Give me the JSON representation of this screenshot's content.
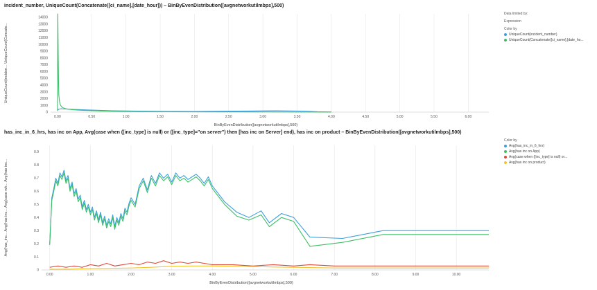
{
  "chart_data": [
    {
      "type": "line",
      "title": "incident_number,  UniqueCount(Concatenate([ci_name],[date_hour]))  –  BinByEvenDistribution([avgnetworkutilmbps],500)",
      "xlabel": "BinByEvenDistribution([avgnetworkutilmbps],500)",
      "ylabel": "UniqueCount(inciden...  UniqueCount(Concate...",
      "x_ticks": [
        "0.00",
        "0.50",
        "1.00",
        "1.50",
        "2.00",
        "2.50",
        "3.00",
        "3.50",
        "4.00",
        "4.50",
        "5.00",
        "5.50",
        "6.00"
      ],
      "y_ticks": [
        "0",
        "1000",
        "2000",
        "3000",
        "4000",
        "5000",
        "6000",
        "7000",
        "8000",
        "9000",
        "10000",
        "11000",
        "12000",
        "13000",
        "14000"
      ],
      "xlim": [
        -0.1,
        6.3
      ],
      "ylim": [
        0,
        14500
      ],
      "legend": {
        "header": [
          "Data limited by:",
          "Expression",
          "Color by"
        ],
        "position": "right"
      },
      "series": [
        {
          "name": "UniqueCount(incident_number)",
          "color": "#3aa0dc",
          "x": [
            0.0,
            0.02,
            0.05,
            0.1,
            0.2,
            0.3,
            0.5,
            0.8,
            1.2,
            1.6,
            2.0,
            2.4,
            2.8,
            3.2,
            3.6,
            3.8,
            4.0
          ],
          "y": [
            300,
            420,
            500,
            460,
            420,
            380,
            300,
            200,
            140,
            110,
            100,
            130,
            160,
            190,
            150,
            60,
            20
          ]
        },
        {
          "name": "UniqueCount(Concatenate([ci_name],[date_ho...",
          "color": "#3cbf68",
          "x": [
            0.0,
            0.005,
            0.01,
            0.015,
            0.02,
            0.03,
            0.04,
            0.06,
            0.08,
            0.12,
            0.2,
            0.3,
            0.5,
            0.8,
            1.2,
            2.0,
            3.0,
            4.0
          ],
          "y": [
            200,
            14500,
            9000,
            5000,
            2600,
            1600,
            1100,
            800,
            650,
            500,
            380,
            300,
            200,
            120,
            80,
            40,
            30,
            10
          ]
        }
      ]
    },
    {
      "type": "line",
      "title": "has_inc_in_6_hrs, has inc on App, Avg(case  when ([inc_type] is null) or ([inc_type]=\"on server\") then [has inc on Server] end), has inc on product  –  BinByEvenDistribution([avgnetworkutilmbps],500)",
      "xlabel": "BinByEvenDistribution([avgnetworkutilmbps],500)",
      "ylabel": "Avg(has_inc...  Avg(has inc...  Avg(case  wh...  Avg(has inc...",
      "x_ticks": [
        "0.00",
        "1.00",
        "2.00",
        "3.00",
        "4.00",
        "5.00",
        "6.00",
        "7.00",
        "8.00",
        "9.00",
        "10.00"
      ],
      "y_ticks": [
        "0",
        "0.1",
        "0.2",
        "0.3",
        "0.4",
        "0.5",
        "0.6",
        "0.7",
        "0.8",
        "0.9"
      ],
      "xlim": [
        -0.2,
        10.8
      ],
      "ylim": [
        0,
        0.95
      ],
      "legend": {
        "header": [
          "Color by"
        ],
        "position": "right"
      },
      "series": [
        {
          "name": "Avg(has_inc_in_6_hrs)",
          "color": "#3aa0dc",
          "x": [
            0.0,
            0.05,
            0.1,
            0.15,
            0.2,
            0.25,
            0.3,
            0.35,
            0.4,
            0.45,
            0.5,
            0.55,
            0.6,
            0.65,
            0.7,
            0.75,
            0.8,
            0.85,
            0.9,
            0.95,
            1.0,
            1.05,
            1.1,
            1.15,
            1.2,
            1.25,
            1.3,
            1.35,
            1.4,
            1.45,
            1.5,
            1.55,
            1.6,
            1.65,
            1.7,
            1.75,
            1.8,
            1.85,
            1.9,
            1.95,
            2.0,
            2.1,
            2.2,
            2.3,
            2.4,
            2.5,
            2.6,
            2.7,
            2.8,
            2.9,
            3.0,
            3.1,
            3.2,
            3.3,
            3.4,
            3.5,
            3.6,
            3.7,
            3.8,
            3.9,
            4.0,
            4.3,
            4.6,
            4.9,
            5.2,
            5.4,
            5.7,
            6.0,
            6.4,
            7.2,
            8.2,
            10.8
          ],
          "y": [
            0.2,
            0.55,
            0.62,
            0.7,
            0.66,
            0.74,
            0.71,
            0.76,
            0.68,
            0.72,
            0.62,
            0.67,
            0.58,
            0.62,
            0.54,
            0.57,
            0.48,
            0.53,
            0.46,
            0.5,
            0.44,
            0.48,
            0.4,
            0.45,
            0.38,
            0.44,
            0.36,
            0.41,
            0.34,
            0.39,
            0.35,
            0.42,
            0.33,
            0.4,
            0.36,
            0.43,
            0.39,
            0.47,
            0.44,
            0.51,
            0.55,
            0.5,
            0.64,
            0.7,
            0.61,
            0.72,
            0.66,
            0.74,
            0.7,
            0.73,
            0.67,
            0.74,
            0.7,
            0.72,
            0.69,
            0.71,
            0.73,
            0.7,
            0.66,
            0.71,
            0.64,
            0.52,
            0.44,
            0.4,
            0.45,
            0.36,
            0.43,
            0.4,
            0.25,
            0.24,
            0.3,
            0.3
          ]
        },
        {
          "name": "Avg(has inc on App)",
          "color": "#3cbf68",
          "x": [
            0.0,
            0.05,
            0.1,
            0.15,
            0.2,
            0.25,
            0.3,
            0.35,
            0.4,
            0.45,
            0.5,
            0.55,
            0.6,
            0.65,
            0.7,
            0.75,
            0.8,
            0.85,
            0.9,
            0.95,
            1.0,
            1.05,
            1.1,
            1.15,
            1.2,
            1.25,
            1.3,
            1.35,
            1.4,
            1.45,
            1.5,
            1.55,
            1.6,
            1.65,
            1.7,
            1.75,
            1.8,
            1.85,
            1.9,
            1.95,
            2.0,
            2.1,
            2.2,
            2.3,
            2.4,
            2.5,
            2.6,
            2.7,
            2.8,
            2.9,
            3.0,
            3.1,
            3.2,
            3.3,
            3.4,
            3.5,
            3.6,
            3.7,
            3.8,
            3.9,
            4.0,
            4.3,
            4.6,
            4.9,
            5.2,
            5.4,
            5.7,
            6.0,
            6.4,
            7.2,
            8.2,
            10.8
          ],
          "y": [
            0.19,
            0.53,
            0.6,
            0.68,
            0.64,
            0.72,
            0.69,
            0.74,
            0.66,
            0.7,
            0.6,
            0.65,
            0.56,
            0.6,
            0.52,
            0.55,
            0.46,
            0.51,
            0.44,
            0.48,
            0.42,
            0.46,
            0.38,
            0.43,
            0.36,
            0.42,
            0.34,
            0.39,
            0.32,
            0.37,
            0.33,
            0.4,
            0.31,
            0.38,
            0.34,
            0.41,
            0.37,
            0.45,
            0.42,
            0.49,
            0.53,
            0.48,
            0.62,
            0.68,
            0.59,
            0.7,
            0.64,
            0.72,
            0.68,
            0.71,
            0.65,
            0.72,
            0.68,
            0.7,
            0.67,
            0.69,
            0.71,
            0.68,
            0.64,
            0.69,
            0.62,
            0.5,
            0.41,
            0.38,
            0.42,
            0.33,
            0.4,
            0.37,
            0.18,
            0.21,
            0.27,
            0.27
          ]
        },
        {
          "name": "Avg(case  when ([inc_type] is null) or...",
          "color": "#e04a3a",
          "x": [
            0.0,
            0.2,
            0.4,
            0.6,
            0.8,
            1.0,
            1.2,
            1.4,
            1.6,
            1.8,
            2.0,
            2.2,
            2.4,
            2.6,
            2.8,
            3.0,
            3.2,
            3.4,
            3.6,
            3.8,
            4.0,
            4.5,
            5.0,
            5.5,
            6.0,
            6.4,
            7.0,
            8.0,
            9.0,
            10.8
          ],
          "y": [
            0.02,
            0.03,
            0.02,
            0.03,
            0.02,
            0.04,
            0.03,
            0.05,
            0.03,
            0.04,
            0.05,
            0.04,
            0.06,
            0.05,
            0.07,
            0.05,
            0.06,
            0.05,
            0.06,
            0.05,
            0.04,
            0.04,
            0.03,
            0.04,
            0.03,
            0.04,
            0.03,
            0.03,
            0.03,
            0.03
          ]
        },
        {
          "name": "Avg(has inc on product)",
          "color": "#f2c42c",
          "x": [
            0.0,
            0.5,
            1.0,
            1.5,
            2.0,
            2.5,
            3.0,
            3.5,
            4.0,
            4.5,
            5.0,
            5.5,
            6.0,
            6.4,
            7.0,
            8.0,
            9.0,
            10.8
          ],
          "y": [
            0.005,
            0.006,
            0.01,
            0.012,
            0.015,
            0.02,
            0.028,
            0.03,
            0.03,
            0.028,
            0.026,
            0.022,
            0.02,
            0.018,
            0.015,
            0.015,
            0.015,
            0.015
          ]
        }
      ]
    }
  ]
}
